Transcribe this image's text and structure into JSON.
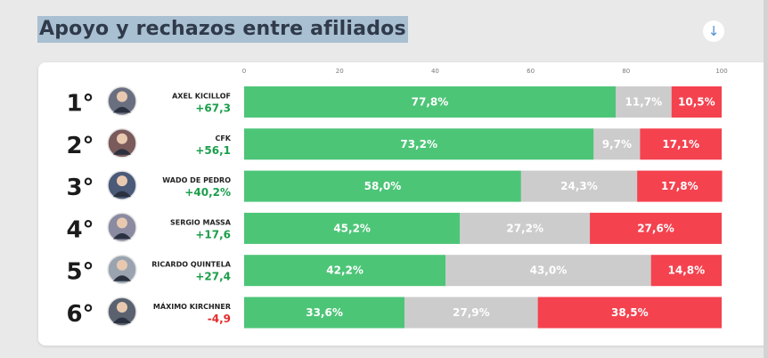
{
  "header": {
    "title": "Apoyo y rechazos entre afiliados",
    "download_icon": "arrow-down-icon"
  },
  "chart_data": {
    "type": "bar",
    "stacked": true,
    "orientation": "horizontal",
    "title": "Apoyo y rechazos entre afiliados",
    "xlim": [
      0,
      100
    ],
    "xticks": [
      0,
      20,
      40,
      60,
      80,
      100
    ],
    "xtick_labels": [
      "0",
      "20",
      "40",
      "60",
      "80",
      "100"
    ],
    "grid": false,
    "legend": "none",
    "rows": [
      {
        "rank": "1°",
        "name": "AXEL KICILLOF",
        "net": "+67,3",
        "net_sign": "positive",
        "values": [
          77.8,
          11.7,
          10.5
        ],
        "labels": [
          "77,8%",
          "11,7%",
          "10,5%"
        ]
      },
      {
        "rank": "2°",
        "name": "CFK",
        "net": "+56,1",
        "net_sign": "positive",
        "values": [
          73.2,
          9.7,
          17.1
        ],
        "labels": [
          "73,2%",
          "9,7%",
          "17,1%"
        ]
      },
      {
        "rank": "3°",
        "name": "WADO DE PEDRO",
        "net": "+40,2%",
        "net_sign": "positive",
        "values": [
          58.0,
          24.3,
          17.8
        ],
        "labels": [
          "58,0%",
          "24,3%",
          "17,8%"
        ]
      },
      {
        "rank": "4°",
        "name": "SERGIO MASSA",
        "net": "+17,6",
        "net_sign": "positive",
        "values": [
          45.2,
          27.2,
          27.6
        ],
        "labels": [
          "45,2%",
          "27,2%",
          "27,6%"
        ]
      },
      {
        "rank": "5°",
        "name": "RICARDO QUINTELA",
        "net": "+27,4",
        "net_sign": "positive",
        "values": [
          42.2,
          43.0,
          14.8
        ],
        "labels": [
          "42,2%",
          "43,0%",
          "14,8%"
        ]
      },
      {
        "rank": "6°",
        "name": "MÁXIMO KIRCHNER",
        "net": "-4,9",
        "net_sign": "negative",
        "values": [
          33.6,
          27.9,
          38.5
        ],
        "labels": [
          "33,6%",
          "27,9%",
          "38,5%"
        ]
      }
    ],
    "series_colors": [
      "#4dc577",
      "#cccccc",
      "#f4424f"
    ],
    "net_colors": {
      "positive": "#1b9e4b",
      "negative": "#e32b2b"
    }
  }
}
